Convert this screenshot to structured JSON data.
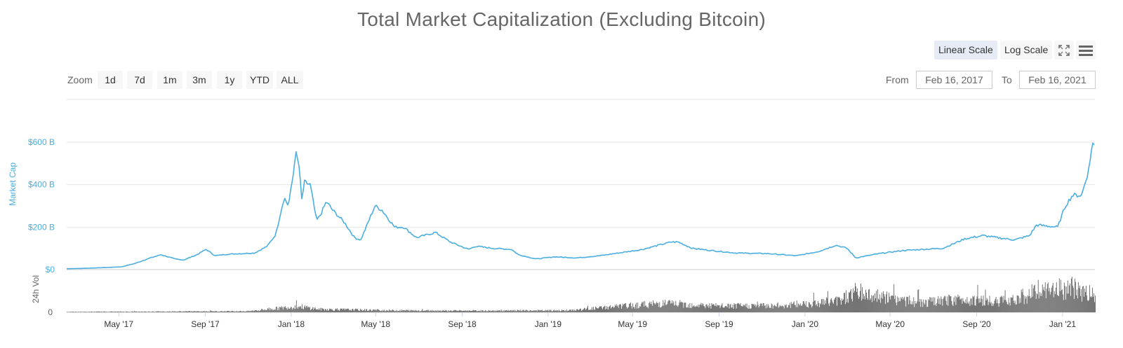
{
  "title": "Total Market Capitalization (Excluding Bitcoin)",
  "toolbar": {
    "linear_scale": "Linear Scale",
    "log_scale": "Log Scale",
    "active_scale": "linear",
    "fullscreen_icon": "fullscreen-icon",
    "menu_icon": "hamburger-menu-icon"
  },
  "zoom": {
    "label": "Zoom",
    "buttons": [
      "1d",
      "7d",
      "1m",
      "3m",
      "1y",
      "YTD",
      "ALL"
    ]
  },
  "range": {
    "from_label": "From",
    "from_value": "Feb 16, 2017",
    "to_label": "To",
    "to_value": "Feb 16, 2021"
  },
  "colors": {
    "market_cap_line": "#4aaee0",
    "volume_bars": "#666666",
    "grid": "#e6e6e6"
  },
  "chart_data": {
    "type": "line",
    "title": "Total Market Capitalization (Excluding Bitcoin)",
    "x_ticks": [
      "May '17",
      "Sep '17",
      "Jan '18",
      "May '18",
      "Sep '18",
      "Jan '19",
      "May '19",
      "Sep '19",
      "Jan '20",
      "May '20",
      "Sep '20",
      "Jan '21"
    ],
    "x_range": [
      "2017-02-16",
      "2021-02-16"
    ],
    "panes": [
      {
        "name": "market-cap",
        "ylabel": "Market Cap",
        "y_unit": "B USD",
        "ylim": [
          0,
          600
        ],
        "y_ticks": [
          "$0",
          "$200 B",
          "$400 B",
          "$600 B"
        ],
        "y_tick_values": [
          0,
          200,
          400,
          600
        ],
        "series": [
          {
            "values": [
              [
                "2017-02-16",
                4
              ],
              [
                "2017-03-15",
                6
              ],
              [
                "2017-04-15",
                10
              ],
              [
                "2017-05-05",
                13
              ],
              [
                "2017-05-25",
                30
              ],
              [
                "2017-06-15",
                55
              ],
              [
                "2017-06-30",
                70
              ],
              [
                "2017-07-20",
                50
              ],
              [
                "2017-08-01",
                45
              ],
              [
                "2017-08-20",
                70
              ],
              [
                "2017-09-02",
                95
              ],
              [
                "2017-09-15",
                65
              ],
              [
                "2017-10-01",
                72
              ],
              [
                "2017-10-20",
                75
              ],
              [
                "2017-11-10",
                78
              ],
              [
                "2017-11-28",
                110
              ],
              [
                "2017-12-10",
                165
              ],
              [
                "2017-12-22",
                340
              ],
              [
                "2017-12-28",
                300
              ],
              [
                "2018-01-04",
                450
              ],
              [
                "2018-01-07",
                555
              ],
              [
                "2018-01-12",
                490
              ],
              [
                "2018-01-16",
                330
              ],
              [
                "2018-01-20",
                410
              ],
              [
                "2018-01-28",
                400
              ],
              [
                "2018-02-06",
                230
              ],
              [
                "2018-02-12",
                260
              ],
              [
                "2018-02-20",
                320
              ],
              [
                "2018-03-01",
                280
              ],
              [
                "2018-03-18",
                220
              ],
              [
                "2018-04-01",
                150
              ],
              [
                "2018-04-10",
                140
              ],
              [
                "2018-04-30",
                300
              ],
              [
                "2018-05-10",
                280
              ],
              [
                "2018-05-28",
                200
              ],
              [
                "2018-06-10",
                200
              ],
              [
                "2018-06-28",
                150
              ],
              [
                "2018-07-25",
                175
              ],
              [
                "2018-08-15",
                130
              ],
              [
                "2018-09-10",
                95
              ],
              [
                "2018-09-20",
                110
              ],
              [
                "2018-10-15",
                100
              ],
              [
                "2018-11-10",
                95
              ],
              [
                "2018-11-20",
                70
              ],
              [
                "2018-12-15",
                50
              ],
              [
                "2019-01-10",
                60
              ],
              [
                "2019-02-10",
                55
              ],
              [
                "2019-03-15",
                65
              ],
              [
                "2019-04-15",
                80
              ],
              [
                "2019-05-15",
                95
              ],
              [
                "2019-06-25",
                130
              ],
              [
                "2019-07-05",
                130
              ],
              [
                "2019-07-25",
                100
              ],
              [
                "2019-08-20",
                90
              ],
              [
                "2019-09-25",
                78
              ],
              [
                "2019-11-10",
                75
              ],
              [
                "2019-12-20",
                65
              ],
              [
                "2020-01-20",
                85
              ],
              [
                "2020-02-14",
                115
              ],
              [
                "2020-03-01",
                100
              ],
              [
                "2020-03-13",
                55
              ],
              [
                "2020-04-15",
                75
              ],
              [
                "2020-05-20",
                90
              ],
              [
                "2020-06-15",
                95
              ],
              [
                "2020-07-15",
                100
              ],
              [
                "2020-08-15",
                145
              ],
              [
                "2020-09-10",
                160
              ],
              [
                "2020-10-01",
                150
              ],
              [
                "2020-10-25",
                140
              ],
              [
                "2020-11-15",
                160
              ],
              [
                "2020-11-25",
                210
              ],
              [
                "2020-12-10",
                205
              ],
              [
                "2020-12-25",
                200
              ],
              [
                "2021-01-05",
                300
              ],
              [
                "2021-01-15",
                350
              ],
              [
                "2021-01-28",
                350
              ],
              [
                "2021-02-08",
                480
              ],
              [
                "2021-02-12",
                600
              ],
              [
                "2021-02-16",
                575
              ]
            ]
          }
        ]
      },
      {
        "name": "volume",
        "ylabel": "24h Vol",
        "y_ticks": [
          "0"
        ],
        "type": "bar",
        "relative_level": [
          [
            "2017-02-16",
            0.01
          ],
          [
            "2017-11-01",
            0.03
          ],
          [
            "2017-12-10",
            0.1
          ],
          [
            "2018-01-10",
            0.16
          ],
          [
            "2018-02-10",
            0.08
          ],
          [
            "2018-06-01",
            0.05
          ],
          [
            "2018-10-01",
            0.04
          ],
          [
            "2019-02-01",
            0.05
          ],
          [
            "2019-04-01",
            0.14
          ],
          [
            "2019-06-15",
            0.24
          ],
          [
            "2019-09-01",
            0.16
          ],
          [
            "2019-12-01",
            0.18
          ],
          [
            "2020-02-15",
            0.3
          ],
          [
            "2020-03-13",
            0.55
          ],
          [
            "2020-04-15",
            0.4
          ],
          [
            "2020-06-15",
            0.25
          ],
          [
            "2020-08-15",
            0.35
          ],
          [
            "2020-10-01",
            0.28
          ],
          [
            "2020-11-25",
            0.5
          ],
          [
            "2021-01-10",
            0.65
          ],
          [
            "2021-02-16",
            0.45
          ]
        ]
      }
    ]
  }
}
